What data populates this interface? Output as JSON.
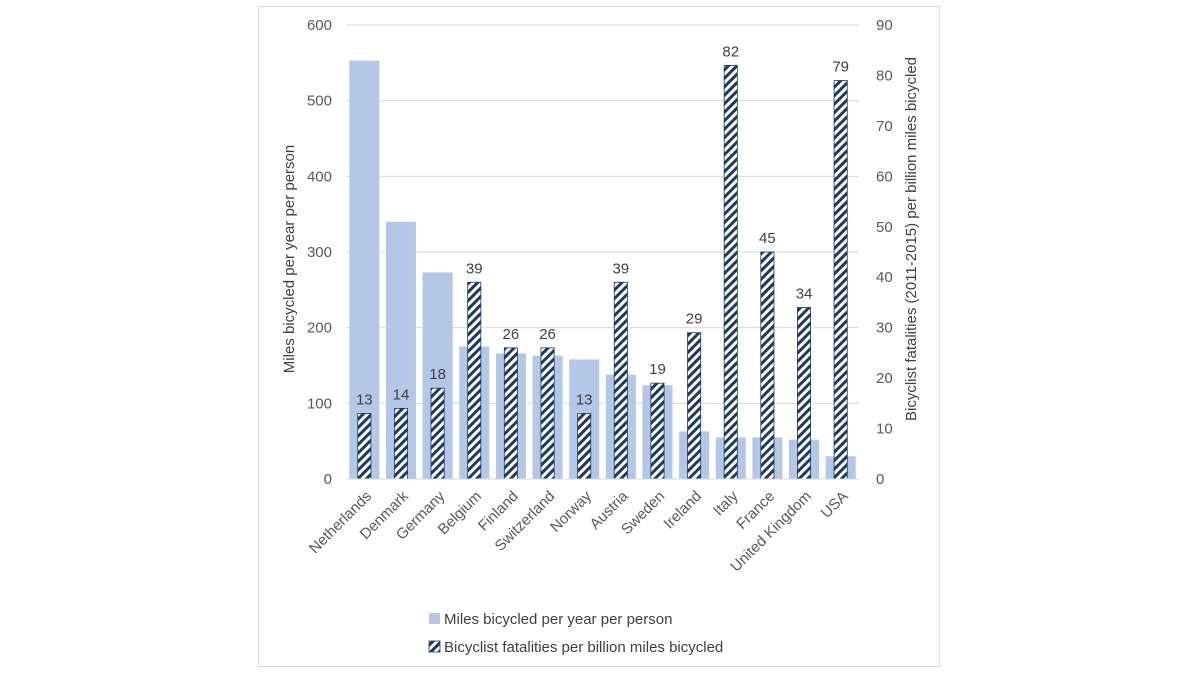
{
  "chart_data": {
    "type": "bar",
    "categories": [
      "Netherlands",
      "Denmark",
      "Germany",
      "Belgium",
      "Finland",
      "Switzerland",
      "Norway",
      "Austria",
      "Sweden",
      "Ireland",
      "Italy",
      "France",
      "United Kingdom",
      "USA"
    ],
    "series": [
      {
        "name": "Miles bicycled per year per person",
        "axis": "left",
        "color": "#b4c7e7",
        "values": [
          553,
          340,
          273,
          175,
          166,
          163,
          158,
          138,
          124,
          63,
          55,
          55,
          52,
          30
        ]
      },
      {
        "name": "Bicyclist fatalities per billion miles bicycled",
        "axis": "right",
        "color": "#1f3864",
        "pattern": "diagonal-hatch",
        "values": [
          13,
          14,
          18,
          39,
          26,
          26,
          13,
          39,
          19,
          29,
          82,
          45,
          34,
          79
        ],
        "data_labels": [
          "13",
          "14",
          "18",
          "39",
          "26",
          "26",
          "13",
          "39",
          "19",
          "29",
          "82",
          "45",
          "34",
          "79"
        ]
      }
    ],
    "ylabel": "Miles bicycled per year per person",
    "ylabel_right": "Bicyclist fatalities (2011-2015) per billion miles bicycled",
    "ylim": [
      0,
      600
    ],
    "yticks": [
      "0",
      "100",
      "200",
      "300",
      "400",
      "500",
      "600"
    ],
    "ylim_right": [
      0,
      90
    ],
    "yticks_right": [
      "0",
      "10",
      "20",
      "30",
      "40",
      "50",
      "60",
      "70",
      "80",
      "90"
    ],
    "grid": true,
    "legend_position": "bottom"
  }
}
